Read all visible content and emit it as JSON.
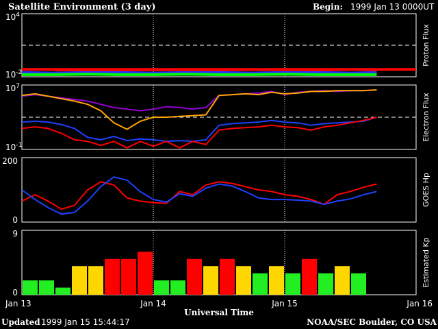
{
  "header": {
    "title": "Satellite Environment (3 day)",
    "begin_label": "Begin:",
    "begin_value": "1999 Jan 13 0000UT"
  },
  "footer": {
    "updated_label": "Updated",
    "updated_value": "1999 Jan 15 15:44:17",
    "credit": "NOAA/SEC Boulder, CO USA"
  },
  "colors": {
    "frame": "#ffffff",
    "proton_high": "#ff0000",
    "proton_mid": "#3030ff",
    "proton_low": "#00ff00",
    "electron_purple": "#9400d3",
    "electron_orange": "#ffa500",
    "electron_blue": "#2040ff",
    "electron_red": "#ff0000",
    "hp_red": "#ff0000",
    "hp_blue": "#2040ff",
    "kp_green": "#22ee22",
    "kp_yellow": "#ffd700",
    "kp_red": "#ff0000"
  },
  "chart_data": [
    {
      "type": "line",
      "id": "proton",
      "ylabel": "Proton Flux",
      "yscale": "log",
      "ylim_exp": [
        -2,
        4
      ],
      "ytick_labels": [
        {
          "base": "10",
          "exp": "4"
        },
        {
          "base": "10",
          "exp": "-2"
        }
      ],
      "threshold_exp": 1,
      "xlim_days": [
        0,
        3
      ],
      "series": [
        {
          "key": "p1",
          "x": [
            0,
            3.0,
            0.25,
            0.5,
            0.75,
            1.0,
            1.25,
            1.5,
            1.75,
            2.0,
            2.25,
            2.5,
            2.7
          ],
          "y": [
            -1.3,
            -1.3,
            -1.35,
            -1.3,
            -1.35,
            -1.3,
            -1.3,
            -1.35,
            -1.3,
            -1.3,
            -1.35,
            -1.3,
            -1.35
          ]
        },
        {
          "key": "p2",
          "x": [
            0,
            0.25,
            0.5,
            0.75,
            1.0,
            1.25,
            1.5,
            1.75,
            2.0,
            2.25,
            2.5,
            2.7
          ],
          "y": [
            -1.6,
            -1.65,
            -1.6,
            -1.6,
            -1.65,
            -1.6,
            -1.6,
            -1.65,
            -1.6,
            -1.6,
            -1.65,
            -1.6
          ]
        },
        {
          "key": "p3",
          "x": [
            0,
            0.25,
            0.5,
            0.75,
            1.0,
            1.25,
            1.5,
            1.75,
            2.0,
            2.25,
            2.5,
            2.7
          ],
          "y": [
            -1.8,
            -1.8,
            -1.75,
            -1.8,
            -1.8,
            -1.75,
            -1.8,
            -1.8,
            -1.75,
            -1.8,
            -1.8,
            -1.8
          ]
        }
      ]
    },
    {
      "type": "line",
      "id": "electron",
      "ylabel": "Electron Flux",
      "yscale": "log",
      "ylim_exp": [
        -1,
        7
      ],
      "ytick_labels": [
        {
          "base": "10",
          "exp": "7"
        },
        {
          "base": "10",
          "exp": "-1"
        }
      ],
      "threshold_exp": 3,
      "xlim_days": [
        0,
        3
      ],
      "series": [
        {
          "key": "purple",
          "x": [
            0,
            0.1,
            0.2,
            0.3,
            0.4,
            0.5,
            0.6,
            0.7,
            0.8,
            0.9,
            1.0,
            1.1,
            1.2,
            1.3,
            1.4,
            1.5,
            1.6,
            1.7,
            1.8,
            1.9,
            2.0,
            2.1,
            2.2,
            2.3,
            2.4,
            2.5,
            2.6,
            2.7
          ],
          "y": [
            5.6,
            5.8,
            5.6,
            5.4,
            5.2,
            5.0,
            4.6,
            4.2,
            4.0,
            3.8,
            4.0,
            4.3,
            4.2,
            4.0,
            4.2,
            5.7,
            5.8,
            5.9,
            6.0,
            6.2,
            5.8,
            6.1,
            6.2,
            6.3,
            6.2,
            6.3,
            6.3,
            6.4
          ]
        },
        {
          "key": "orange",
          "x": [
            0,
            0.1,
            0.2,
            0.3,
            0.4,
            0.5,
            0.6,
            0.7,
            0.8,
            0.9,
            1.0,
            1.1,
            1.2,
            1.3,
            1.4,
            1.5,
            1.6,
            1.7,
            1.8,
            1.9,
            2.0,
            2.1,
            2.2,
            2.3,
            2.4,
            2.5,
            2.6,
            2.7
          ],
          "y": [
            5.7,
            5.9,
            5.6,
            5.3,
            5.0,
            4.6,
            3.8,
            2.3,
            1.5,
            2.5,
            3.0,
            3.0,
            3.1,
            3.2,
            3.3,
            5.7,
            5.8,
            5.9,
            5.8,
            6.1,
            5.9,
            6.0,
            6.2,
            6.2,
            6.3,
            6.3,
            6.3,
            6.4
          ]
        },
        {
          "key": "blue",
          "x": [
            0,
            0.1,
            0.2,
            0.3,
            0.4,
            0.5,
            0.6,
            0.7,
            0.8,
            0.9,
            1.0,
            1.1,
            1.2,
            1.3,
            1.4,
            1.5,
            1.6,
            1.7,
            1.8,
            1.9,
            2.0,
            2.1,
            2.2,
            2.3,
            2.4,
            2.5,
            2.6,
            2.7
          ],
          "y": [
            2.4,
            2.5,
            2.4,
            2.1,
            1.6,
            0.5,
            0.2,
            0.6,
            0.1,
            0.3,
            0.2,
            0.0,
            0.1,
            0.0,
            0.2,
            2.0,
            2.2,
            2.3,
            2.4,
            2.6,
            2.4,
            2.3,
            2.0,
            2.2,
            2.3,
            2.4,
            2.5,
            3.0
          ]
        },
        {
          "key": "red",
          "x": [
            0,
            0.1,
            0.2,
            0.3,
            0.4,
            0.5,
            0.6,
            0.7,
            0.8,
            0.9,
            1.0,
            1.1,
            1.2,
            1.3,
            1.4,
            1.5,
            1.6,
            1.7,
            1.8,
            1.9,
            2.0,
            2.1,
            2.2,
            2.3,
            2.4,
            2.5,
            2.6,
            2.7
          ],
          "y": [
            1.6,
            1.8,
            1.6,
            1.0,
            0.2,
            0.0,
            -0.5,
            0.0,
            -0.8,
            0.0,
            -0.6,
            0.0,
            -0.8,
            0.0,
            -0.4,
            1.4,
            1.6,
            1.7,
            1.8,
            2.0,
            1.8,
            1.7,
            1.4,
            1.8,
            2.0,
            2.3,
            2.6,
            3.0
          ]
        }
      ]
    },
    {
      "type": "line",
      "id": "goes_hp",
      "ylabel": "GOES Hp",
      "yscale": "linear",
      "ylim": [
        0,
        200
      ],
      "ytick_labels": [
        "200",
        "0"
      ],
      "xlim_days": [
        0,
        3
      ],
      "series": [
        {
          "key": "red",
          "x": [
            0,
            0.1,
            0.2,
            0.3,
            0.4,
            0.5,
            0.6,
            0.7,
            0.8,
            0.9,
            1.0,
            1.1,
            1.2,
            1.3,
            1.4,
            1.5,
            1.6,
            1.7,
            1.8,
            1.9,
            2.0,
            2.1,
            2.2,
            2.3,
            2.4,
            2.5,
            2.6,
            2.7
          ],
          "y": [
            65,
            85,
            65,
            40,
            52,
            100,
            125,
            115,
            75,
            65,
            60,
            58,
            95,
            85,
            115,
            125,
            120,
            110,
            100,
            95,
            85,
            80,
            70,
            55,
            85,
            95,
            108,
            118
          ]
        },
        {
          "key": "blue",
          "x": [
            0,
            0.1,
            0.2,
            0.3,
            0.4,
            0.5,
            0.6,
            0.7,
            0.8,
            0.9,
            1.0,
            1.1,
            1.2,
            1.3,
            1.4,
            1.5,
            1.6,
            1.7,
            1.8,
            1.9,
            2.0,
            2.1,
            2.2,
            2.3,
            2.4,
            2.5,
            2.6,
            2.7
          ],
          "y": [
            100,
            70,
            45,
            25,
            30,
            65,
            110,
            140,
            130,
            95,
            70,
            62,
            88,
            80,
            105,
            118,
            112,
            95,
            75,
            70,
            70,
            68,
            65,
            55,
            65,
            72,
            85,
            95
          ]
        }
      ]
    },
    {
      "type": "bar",
      "id": "estimated_kp",
      "ylabel": "Estimated Kp",
      "ylim": [
        0,
        9
      ],
      "ytick_labels": [
        "9",
        "0"
      ],
      "x_start_days": [
        0,
        0.125,
        0.25,
        0.375,
        0.5,
        0.625,
        0.75,
        0.875,
        1.0,
        1.125,
        1.25,
        1.375,
        1.5,
        1.625,
        1.75,
        1.875,
        2.0,
        2.125,
        2.25,
        2.375,
        2.5
      ],
      "values": [
        2,
        2,
        1,
        4,
        4,
        5,
        5,
        6,
        2,
        2,
        5,
        4,
        5,
        4,
        3,
        4,
        3,
        5,
        3,
        4,
        3
      ],
      "bar_colors": [
        "kp_green",
        "kp_green",
        "kp_green",
        "kp_yellow",
        "kp_yellow",
        "kp_red",
        "kp_red",
        "kp_red",
        "kp_green",
        "kp_green",
        "kp_red",
        "kp_yellow",
        "kp_red",
        "kp_yellow",
        "kp_green",
        "kp_yellow",
        "kp_green",
        "kp_red",
        "kp_green",
        "kp_yellow",
        "kp_green"
      ]
    }
  ],
  "xaxis": {
    "label": "Universal Time",
    "ticks": [
      {
        "day": 0,
        "label": "Jan 13"
      },
      {
        "day": 1,
        "label": "Jan 14"
      },
      {
        "day": 2,
        "label": "Jan 15"
      },
      {
        "day": 3,
        "label": "Jan 16"
      }
    ]
  }
}
